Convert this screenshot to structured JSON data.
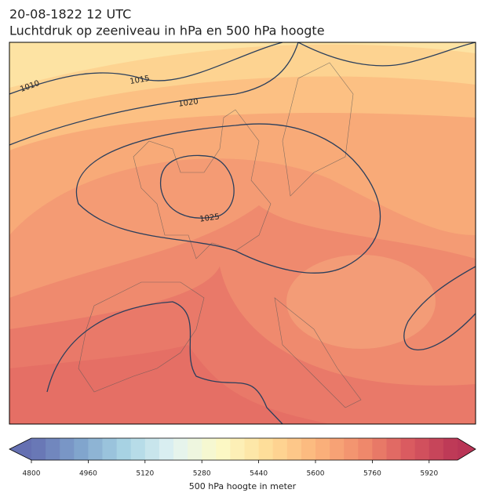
{
  "header": {
    "title": "20-08-1822 12 UTC",
    "subtitle": "Luchtdruk op zeeniveau in hPa en 500 hPa hoogte"
  },
  "isobar_labels": [
    "1010",
    "1015",
    "1020",
    "1025"
  ],
  "colorbar": {
    "lim": [
      4800,
      6000
    ],
    "step": 40,
    "ticks": [
      4800,
      4960,
      5120,
      5280,
      5440,
      5600,
      5760,
      5920
    ],
    "colors": [
      "#6570b2",
      "#7fa3cc",
      "#a9d4e4",
      "#e2f3f3",
      "#fcf9c6",
      "#fedd98",
      "#fcb57c",
      "#f08a6c",
      "#d9595f",
      "#b93556"
    ],
    "extend": "both",
    "label": "500 hPa hoogte in meter"
  }
}
